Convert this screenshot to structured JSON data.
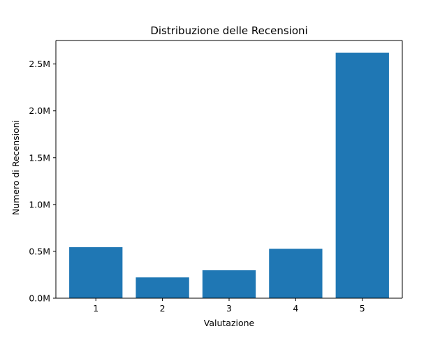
{
  "chart_data": {
    "type": "bar",
    "title": "Distribuzione delle Recensioni",
    "xlabel": "Valutazione",
    "ylabel": "Numero di Recensioni",
    "categories": [
      "1",
      "2",
      "3",
      "4",
      "5"
    ],
    "values": [
      545000,
      222000,
      298000,
      528000,
      2620000
    ],
    "ylim": [
      0,
      2751000
    ],
    "yticks": [
      0,
      500000,
      1000000,
      1500000,
      2000000,
      2500000
    ],
    "ytick_labels": [
      "0.0M",
      "0.5M",
      "1.0M",
      "1.5M",
      "2.0M",
      "2.5M"
    ],
    "grid": false,
    "legend": "none",
    "bar_color": "#1f77b4"
  }
}
